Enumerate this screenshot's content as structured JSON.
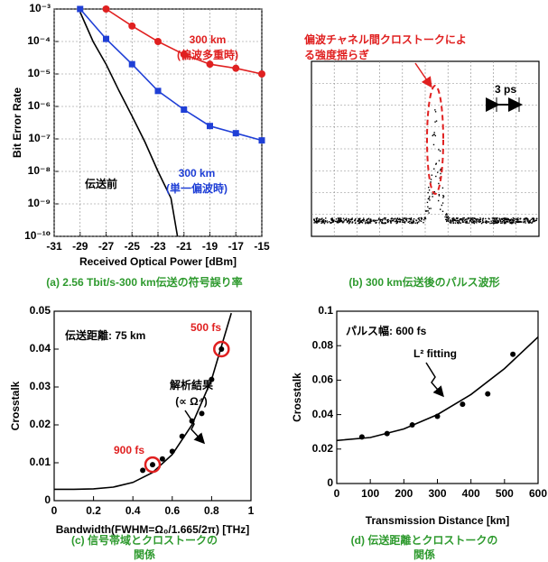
{
  "chart_data": [
    {
      "type": "line",
      "log_y": true,
      "grid": true,
      "xlabel": "Received Optical Power [dBm]",
      "ylabel": "Bit Error Rate",
      "caption": [
        "(a) 2.56 Tbit/s-300 km伝送の符号誤り率"
      ],
      "xlim": [
        -31,
        -15
      ],
      "xticks": [
        -31,
        -29,
        -27,
        -25,
        -23,
        -21,
        -19,
        -17,
        -15
      ],
      "ylim": [
        1e-10,
        0.001
      ],
      "yticks": [
        {
          "value": 1e-10,
          "label": "10⁻¹⁰"
        },
        {
          "value": 1e-09,
          "label": "10⁻⁹"
        },
        {
          "value": 1e-08,
          "label": "10⁻⁸"
        },
        {
          "value": 1e-07,
          "label": "10⁻⁷"
        },
        {
          "value": 1e-06,
          "label": "10⁻⁶"
        },
        {
          "value": 1e-05,
          "label": "10⁻⁵"
        },
        {
          "value": 0.0001,
          "label": "10⁻⁴"
        },
        {
          "value": 0.001,
          "label": "10⁻³"
        }
      ],
      "series": [
        {
          "color": "#000000",
          "mode": "line",
          "x": [
            -29,
            -28,
            -27,
            -26,
            -25,
            -24,
            -23,
            -22,
            -21.5
          ],
          "values": [
            0.0008,
            0.0001,
            2e-05,
            3e-06,
            5e-07,
            8e-08,
            1e-08,
            1.5e-09,
            1e-10
          ]
        },
        {
          "color": "#1f3fd6",
          "mode": "line+markers",
          "marker": "square",
          "x": [
            -29,
            -27,
            -25,
            -23,
            -21,
            -19,
            -17,
            -15
          ],
          "values": [
            0.001,
            0.00012,
            2e-05,
            3e-06,
            8e-07,
            2.5e-07,
            1.5e-07,
            9e-08
          ]
        },
        {
          "color": "#e02020",
          "mode": "line+markers",
          "marker": "circle",
          "x": [
            -27,
            -25,
            -23,
            -21,
            -19,
            -17,
            -15
          ],
          "values": [
            0.001,
            0.0003,
            0.0001,
            4e-05,
            2e-05,
            1.5e-05,
            1e-05
          ]
        }
      ],
      "annotations": [
        {
          "text": "300 km",
          "color": "#e02020"
        },
        {
          "text": "(偏波多重時)",
          "color": "#e02020"
        },
        {
          "text": "300 km",
          "color": "#1f3fd6"
        },
        {
          "text": "(単一偏波時)",
          "color": "#1f3fd6"
        },
        {
          "text": "伝送前",
          "color": "#000000"
        }
      ]
    },
    {
      "type": "waveform",
      "caption": [
        "(b) 300 km伝送後のパルス波形"
      ],
      "annotations": [
        {
          "text": "偏波チャネル間クロストークによ",
          "color": "#e02020"
        },
        {
          "text": "る強度揺らぎ",
          "color": "#e02020"
        },
        {
          "text": "3 ps",
          "color": "#000000"
        }
      ]
    },
    {
      "type": "scatter",
      "grid": false,
      "xlabel": "Bandwidth(FWHM=Ω₀/1.665/2π) [THz]",
      "ylabel": "Crosstalk",
      "caption": [
        "(c) 信号帯域とクロストークの",
        "関係"
      ],
      "xlim": [
        0,
        1
      ],
      "xticks": [
        0,
        0.2,
        0.4,
        0.6,
        0.8,
        1
      ],
      "ylim": [
        0,
        0.05
      ],
      "yticks": [
        0,
        0.01,
        0.02,
        0.03,
        0.04,
        0.05
      ],
      "series": [
        {
          "color": "#000000",
          "mode": "markers",
          "x": [
            0.45,
            0.5,
            0.55,
            0.6,
            0.65,
            0.7,
            0.75,
            0.8,
            0.85
          ],
          "values": [
            0.008,
            0.0095,
            0.011,
            0.013,
            0.017,
            0.021,
            0.023,
            0.032,
            0.04
          ]
        },
        {
          "color": "#000000",
          "mode": "line",
          "x": [
            0,
            0.1,
            0.2,
            0.3,
            0.4,
            0.5,
            0.6,
            0.7,
            0.8,
            0.9
          ],
          "values": [
            0.003,
            0.003007,
            0.00311,
            0.00357,
            0.00482,
            0.00743,
            0.0122,
            0.02,
            0.032,
            0.0495
          ]
        }
      ],
      "highlights": [
        {
          "x": 0.85,
          "y": 0.04,
          "label": "500 fs"
        },
        {
          "x": 0.5,
          "y": 0.0095,
          "label": "900 fs"
        }
      ],
      "annotations": [
        {
          "text": "伝送距離: 75 km",
          "color": "#000000"
        },
        {
          "text": "解析結果",
          "color": "#000000"
        },
        {
          "text": "(∝ Ω⁴)",
          "color": "#000000"
        }
      ]
    },
    {
      "type": "scatter",
      "grid": false,
      "xlabel": "Transmission Distance [km]",
      "ylabel": "Crosstalk",
      "caption": [
        "(d) 伝送距離とクロストークの",
        "関係"
      ],
      "xlim": [
        0,
        600
      ],
      "xticks": [
        0,
        100,
        200,
        300,
        400,
        500,
        600
      ],
      "ylim": [
        0,
        0.1
      ],
      "yticks": [
        0,
        0.02,
        0.04,
        0.06,
        0.08,
        0.1
      ],
      "series": [
        {
          "color": "#000000",
          "mode": "markers",
          "x": [
            75,
            150,
            225,
            300,
            375,
            450,
            525
          ],
          "values": [
            0.027,
            0.029,
            0.034,
            0.039,
            0.046,
            0.052,
            0.075
          ]
        },
        {
          "color": "#000000",
          "mode": "line",
          "x": [
            0,
            100,
            200,
            300,
            400,
            500,
            600
          ],
          "values": [
            0.025,
            0.0267,
            0.0317,
            0.04,
            0.0517,
            0.0667,
            0.085
          ]
        }
      ],
      "annotations": [
        {
          "text": "パルス幅: 600 fs",
          "color": "#000000"
        },
        {
          "text": "L² fitting",
          "color": "#000000"
        }
      ]
    }
  ]
}
